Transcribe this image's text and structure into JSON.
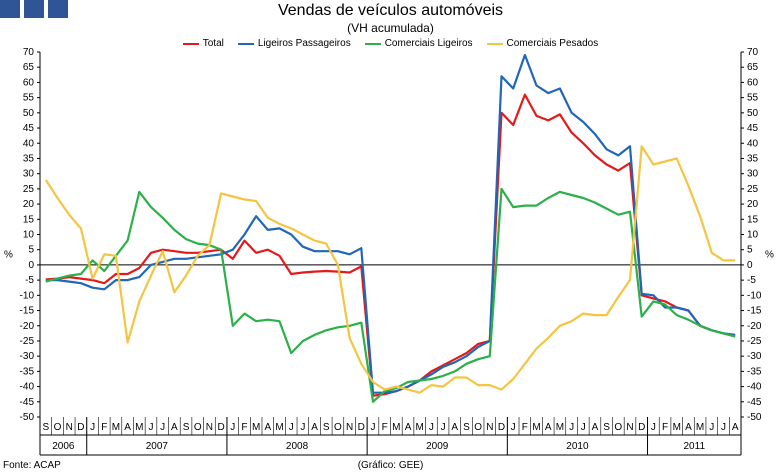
{
  "header": {
    "title": "Vendas de veículos automóveis",
    "subtitle": "(VH acumulada)"
  },
  "footer": {
    "source": "Fonte: ACAP",
    "credit": "(Gráfico: GEE)"
  },
  "colors": {
    "total": "#e31a1c",
    "ligeiros_passageiros": "#2166b8",
    "comerciais_ligeiros": "#2bb04a",
    "comerciais_pesados": "#f4c542",
    "accent": "#2f5597"
  },
  "chart_data": {
    "type": "line",
    "title": "Vendas de veículos automóveis",
    "subtitle": "(VH acumulada)",
    "ylabel_left": "%",
    "ylabel_right": "%",
    "ylim": [
      -50,
      70
    ],
    "ytick_step": 5,
    "grid": false,
    "legend_position": "top",
    "x": [
      "2006-09",
      "2006-10",
      "2006-11",
      "2006-12",
      "2007-01",
      "2007-02",
      "2007-03",
      "2007-04",
      "2007-05",
      "2007-06",
      "2007-07",
      "2007-08",
      "2007-09",
      "2007-10",
      "2007-11",
      "2007-12",
      "2008-01",
      "2008-02",
      "2008-03",
      "2008-04",
      "2008-05",
      "2008-06",
      "2008-07",
      "2008-08",
      "2008-09",
      "2008-10",
      "2008-11",
      "2008-12",
      "2009-01",
      "2009-02",
      "2009-03",
      "2009-04",
      "2009-05",
      "2009-06",
      "2009-07",
      "2009-08",
      "2009-09",
      "2009-10",
      "2009-11",
      "2009-12",
      "2010-01",
      "2010-02",
      "2010-03",
      "2010-04",
      "2010-05",
      "2010-06",
      "2010-07",
      "2010-08",
      "2010-09",
      "2010-10",
      "2010-11",
      "2010-12",
      "2011-01",
      "2011-02",
      "2011-03",
      "2011-04",
      "2011-05",
      "2011-06",
      "2011-07",
      "2011-08"
    ],
    "month_labels": [
      "S",
      "O",
      "N",
      "D",
      "J",
      "F",
      "M",
      "A",
      "M",
      "J",
      "J",
      "A",
      "S",
      "O",
      "N",
      "D",
      "J",
      "F",
      "M",
      "A",
      "M",
      "J",
      "J",
      "A",
      "S",
      "O",
      "N",
      "D",
      "J",
      "F",
      "M",
      "A",
      "M",
      "J",
      "J",
      "A",
      "S",
      "O",
      "N",
      "D",
      "J",
      "F",
      "M",
      "A",
      "M",
      "J",
      "J",
      "A",
      "S",
      "O",
      "N",
      "D",
      "J",
      "F",
      "M",
      "A",
      "M",
      "J",
      "J",
      "A"
    ],
    "year_labels": [
      {
        "label": "2006",
        "first": 0,
        "last": 3
      },
      {
        "label": "2007",
        "first": 4,
        "last": 15
      },
      {
        "label": "2008",
        "first": 16,
        "last": 27
      },
      {
        "label": "2009",
        "first": 28,
        "last": 39
      },
      {
        "label": "2010",
        "first": 40,
        "last": 51
      },
      {
        "label": "2011",
        "first": 52,
        "last": 59
      }
    ],
    "series": [
      {
        "name": "Total",
        "color": "#e31a1c",
        "values": [
          -4.8,
          -4.5,
          -4,
          -4.5,
          -5,
          -6,
          -3,
          -3,
          -1,
          4,
          5,
          4.5,
          4,
          4,
          4.5,
          5,
          2,
          8,
          4,
          5,
          3,
          -3,
          -2.5,
          -2.2,
          -2,
          -2.2,
          -2.5,
          -0.5,
          -43,
          -42.5,
          -41.5,
          -40,
          -38,
          -35,
          -33,
          -31,
          -29,
          -26,
          -25,
          50,
          46,
          56,
          49,
          47.5,
          49.5,
          43.5,
          40,
          36,
          33,
          31,
          33.5,
          -10,
          -11,
          -12,
          -14,
          -15,
          -20,
          -21.5,
          -22.5,
          -23.5
        ]
      },
      {
        "name": "Ligeiros Passageiros",
        "color": "#2166b8",
        "values": [
          -5,
          -5,
          -5.5,
          -6,
          -7.5,
          -8,
          -5,
          -5,
          -4,
          0,
          1,
          2,
          2,
          2.5,
          3,
          3.5,
          5,
          10,
          16,
          11.5,
          12,
          10,
          6,
          4.5,
          4.5,
          4.5,
          3.5,
          5.5,
          -42,
          -42,
          -41.5,
          -40,
          -38,
          -36,
          -33.5,
          -32,
          -30,
          -27,
          -25,
          62,
          58,
          69,
          59,
          56.5,
          58,
          50,
          47,
          43,
          38,
          36,
          39,
          -9.5,
          -10,
          -14,
          -14,
          -15,
          -20,
          -21.5,
          -22.5,
          -23
        ]
      },
      {
        "name": "Comerciais Ligeiros",
        "color": "#2bb04a",
        "values": [
          -5.5,
          -4.5,
          -3.5,
          -3,
          1.5,
          -2,
          3,
          8,
          24,
          19,
          15.5,
          11.5,
          8.5,
          7,
          6.5,
          5,
          -20,
          -16,
          -18.5,
          -18,
          -18.5,
          -29,
          -25,
          -23,
          -21.5,
          -20.5,
          -20,
          -19,
          -45,
          -41.5,
          -40.5,
          -38.5,
          -38,
          -37.5,
          -36.5,
          -35,
          -32.5,
          -31,
          -30,
          25,
          19,
          19.5,
          19.5,
          22,
          24,
          23,
          22,
          20.5,
          18.5,
          16.5,
          17.5,
          -17,
          -12,
          -13,
          -16.5,
          -18,
          -20,
          -21.5,
          -22.5,
          -23.5
        ]
      },
      {
        "name": "Comerciais Pesados",
        "color": "#f4c542",
        "values": [
          28,
          22,
          16.5,
          12,
          -4.5,
          3.5,
          3,
          -25.5,
          -12,
          -3.5,
          4.5,
          -9,
          -3.5,
          3,
          6.5,
          23.5,
          22.5,
          21.5,
          21,
          15.5,
          13.5,
          12,
          10,
          8,
          7,
          0,
          -24,
          -32.5,
          -38.5,
          -41,
          -40,
          -41,
          -42,
          -39.5,
          -40,
          -37,
          -37,
          -39.5,
          -39.5,
          -41,
          -37.5,
          -32.5,
          -27.5,
          -24,
          -20,
          -18.5,
          -16,
          -16.5,
          -16.5,
          -10.5,
          -5,
          39,
          33,
          34,
          35,
          26,
          16,
          4,
          1.5,
          1.5
        ]
      }
    ]
  }
}
